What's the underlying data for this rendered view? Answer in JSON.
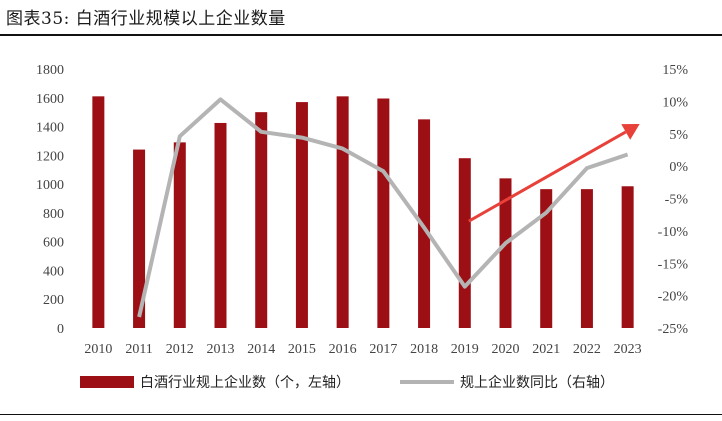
{
  "figure": {
    "title": "图表35:  白酒行业规模以上企业数量"
  },
  "colors": {
    "bar": "#9c0f14",
    "line": "#b4b4b4",
    "arrow": "#e8413a",
    "rule": "#111111"
  },
  "chart_data": {
    "type": "bar",
    "title": "白酒行业规模以上企业数量",
    "categories": [
      "2010",
      "2011",
      "2012",
      "2013",
      "2014",
      "2015",
      "2016",
      "2017",
      "2018",
      "2019",
      "2020",
      "2021",
      "2022",
      "2023"
    ],
    "series": [
      {
        "name": "白酒行业规上企业数（个，左轴）",
        "type": "bar",
        "axis": "left",
        "values": [
          1610,
          1240,
          1290,
          1425,
          1500,
          1570,
          1610,
          1595,
          1450,
          1180,
          1040,
          965,
          965,
          985
        ]
      },
      {
        "name": "规上企业数同比（右轴）",
        "type": "line",
        "axis": "right",
        "values": [
          null,
          -23.3,
          4.6,
          10.3,
          5.3,
          4.4,
          2.7,
          -0.8,
          -9.5,
          -18.6,
          -11.9,
          -7.2,
          -0.3,
          1.8
        ]
      }
    ],
    "y_left": {
      "min": 0,
      "max": 1800,
      "ticks": [
        0,
        200,
        400,
        600,
        800,
        1000,
        1200,
        1400,
        1600,
        1800
      ]
    },
    "y_right": {
      "min": -25,
      "max": 15,
      "ticks": [
        15,
        10,
        5,
        0,
        -5,
        -10,
        -15,
        -20,
        -25
      ],
      "tick_labels": [
        "15%",
        "10%",
        "5%",
        "0%",
        "-5%",
        "-10%",
        "-15%",
        "-20%",
        "-25%"
      ]
    },
    "annotation": {
      "type": "trend-arrow",
      "from": {
        "year": "2019",
        "pct": -8.5
      },
      "to": {
        "year": "2023",
        "pct": 6.5
      }
    },
    "legend": [
      "白酒行业规上企业数（个，左轴）",
      "规上企业数同比（右轴）"
    ],
    "legend_position": "bottom"
  }
}
